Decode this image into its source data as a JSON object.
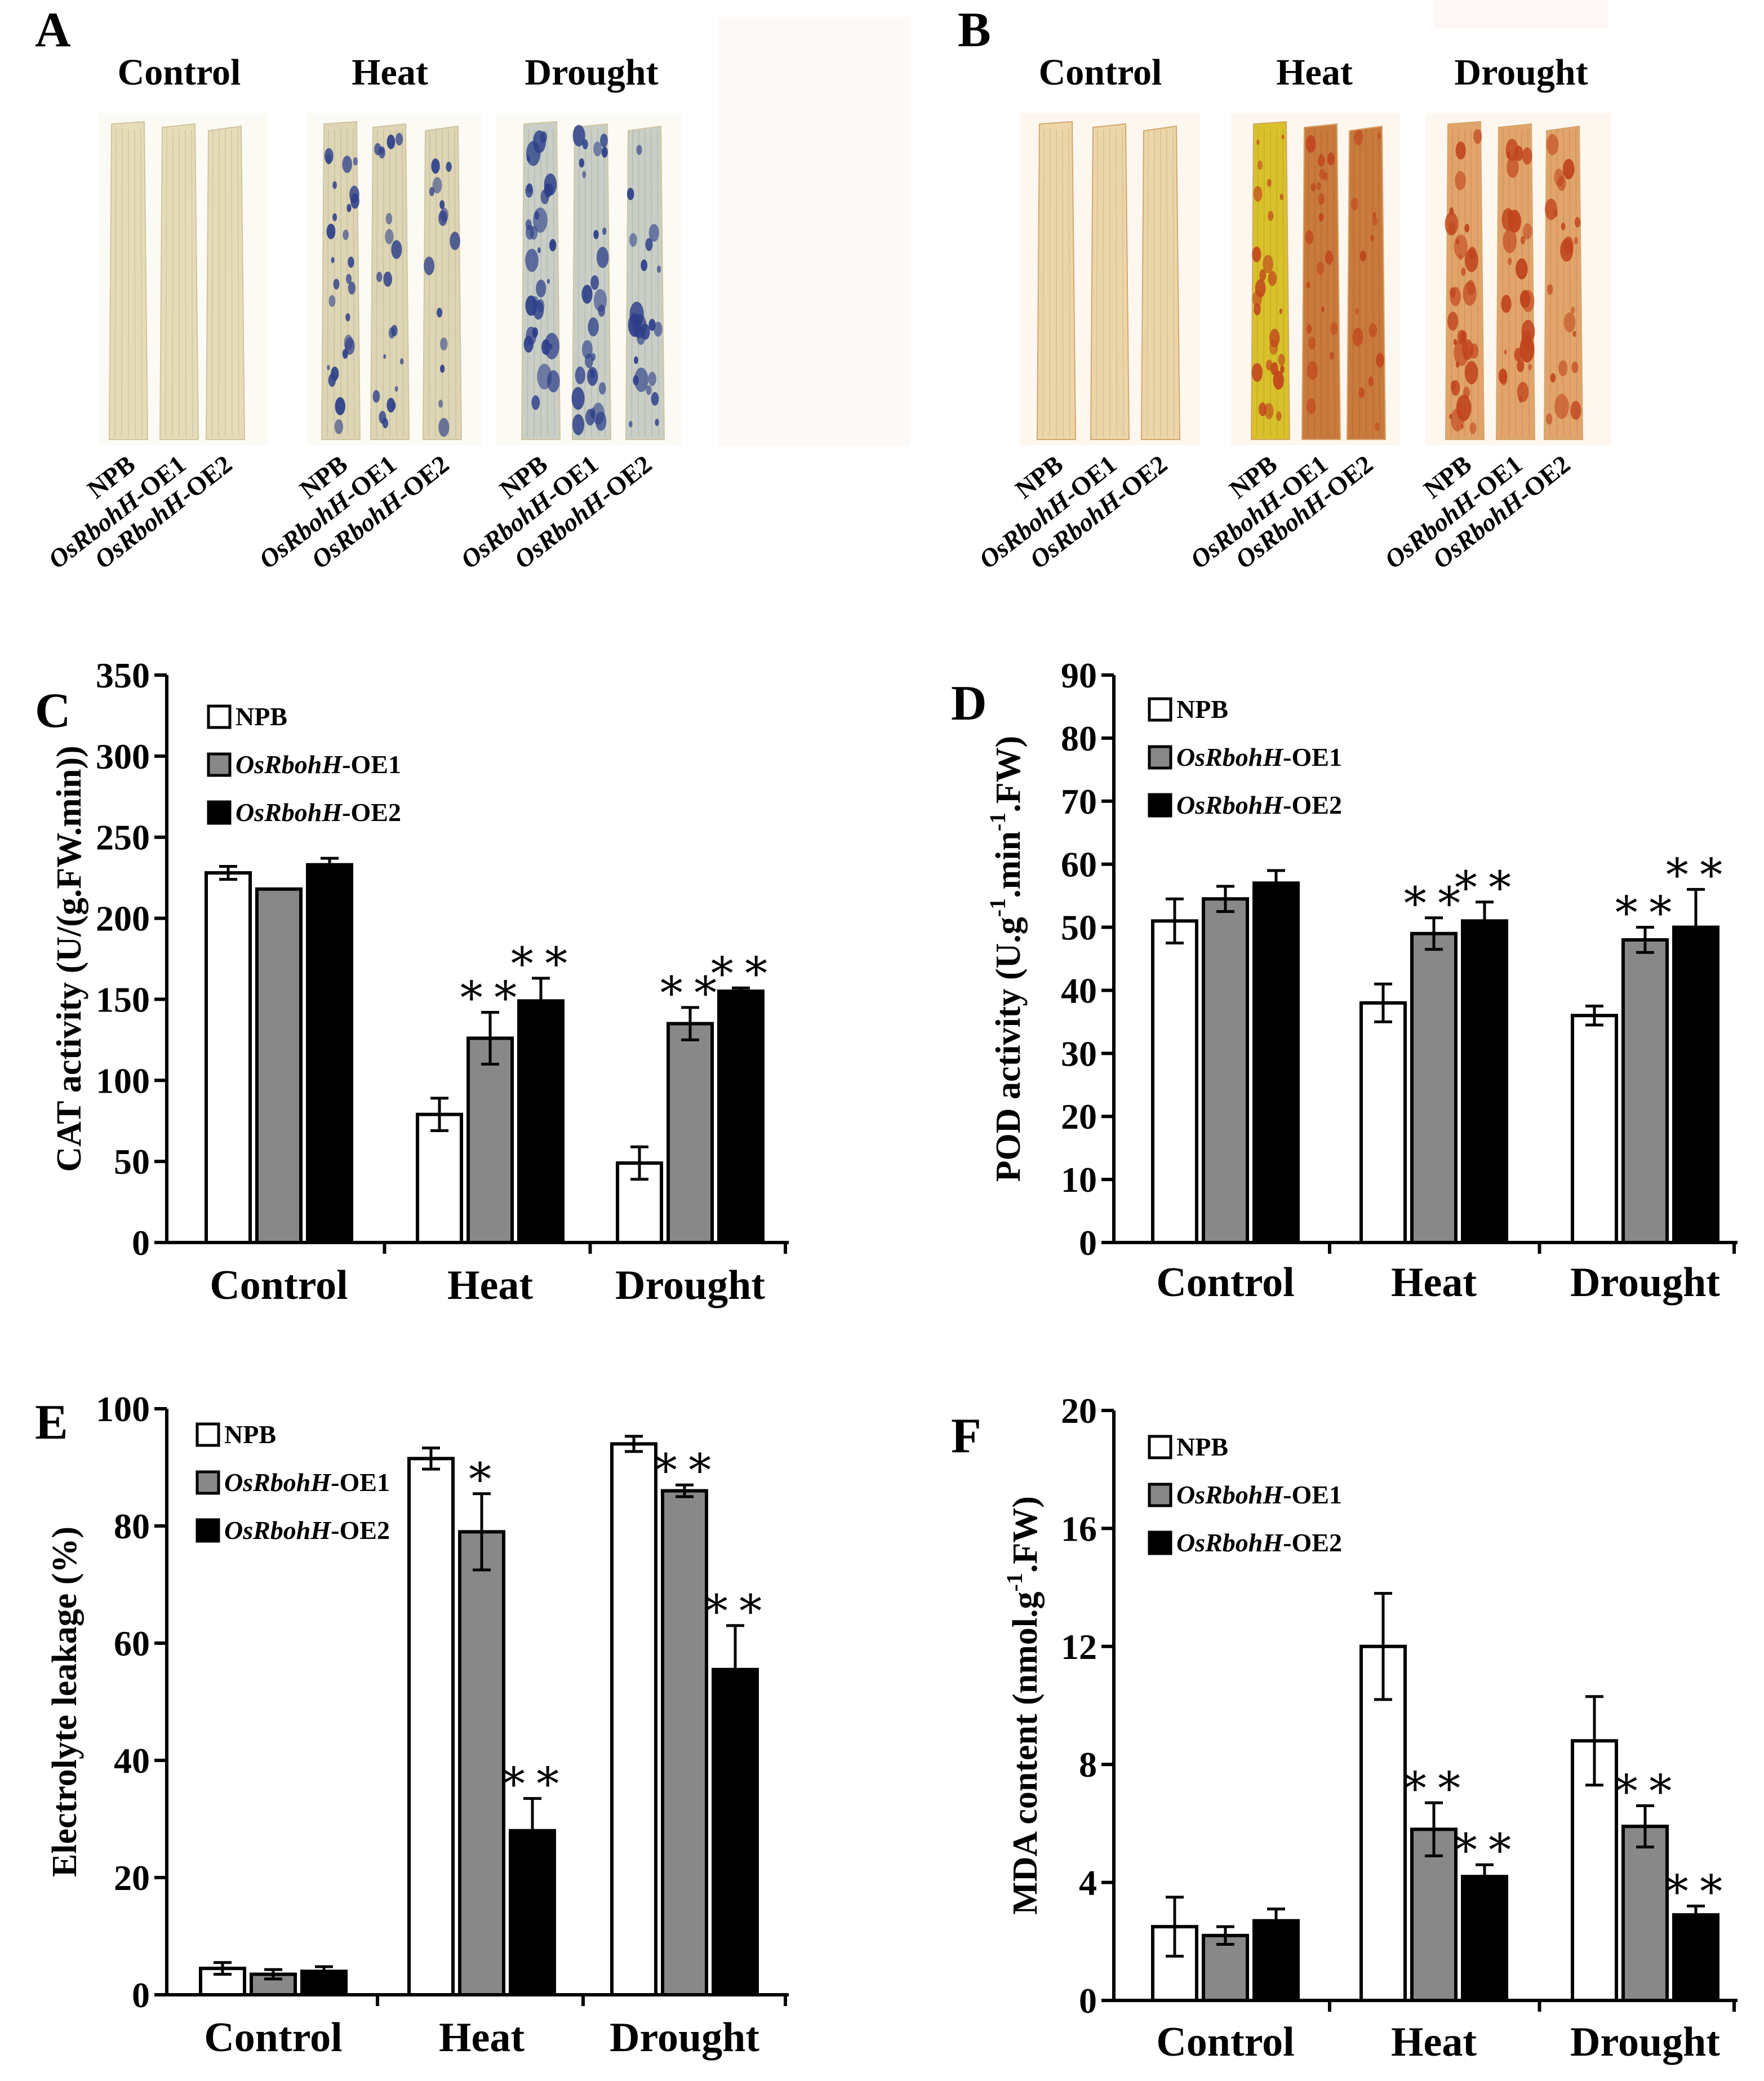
{
  "panels": {
    "A": {
      "letter": "A",
      "groups": [
        {
          "title": "Control",
          "lines": [
            "NPB",
            "OsRbohH-OE1",
            "OsRbohH-OE2"
          ]
        },
        {
          "title": "Heat",
          "lines": [
            "NPB",
            "OsRbohH-OE1",
            "OsRbohH-OE2"
          ]
        },
        {
          "title": "Drought",
          "lines": [
            "NPB",
            "OsRbohH-OE1",
            "OsRbohH-OE2"
          ]
        }
      ],
      "stain_color": "#2d3f8a"
    },
    "B": {
      "letter": "B",
      "groups": [
        {
          "title": "Control",
          "lines": [
            "NPB",
            "OsRbohH-OE1",
            "OsRbohH-OE2"
          ]
        },
        {
          "title": "Heat",
          "lines": [
            "NPB",
            "OsRbohH-OE1",
            "OsRbohH-OE2"
          ]
        },
        {
          "title": "Drought",
          "lines": [
            "NPB",
            "OsRbohH-OE1",
            "OsRbohH-OE2"
          ]
        }
      ],
      "stain_color": "#c0441c"
    }
  },
  "colors": {
    "NPB": "#ffffff",
    "OE1": "#888888",
    "OE2": "#000000",
    "axis": "#000000"
  },
  "chart_data": [
    {
      "panel": "C",
      "type": "bar",
      "title": "",
      "xlabel": "",
      "ylabel": "CAT activity (U/(g.FW.min))",
      "ylim": [
        0,
        350
      ],
      "yticks": [
        0,
        50,
        100,
        150,
        200,
        250,
        300,
        350
      ],
      "categories": [
        "Control",
        "Heat",
        "Drought"
      ],
      "legend": {
        "placement": "top-left",
        "entries": [
          {
            "italic": "",
            "plain": "NPB"
          },
          {
            "italic": "OsRbohH",
            "plain": "-OE1"
          },
          {
            "italic": "OsRbohH",
            "plain": "-OE2"
          }
        ]
      },
      "series": [
        {
          "name": "NPB",
          "values": [
            228,
            79,
            49
          ],
          "errors": [
            4,
            10,
            10
          ],
          "marks": [
            "",
            "",
            ""
          ]
        },
        {
          "name": "OsRbohH-OE1",
          "values": [
            218,
            126,
            135
          ],
          "errors": [
            0,
            16,
            10
          ],
          "marks": [
            "",
            "**",
            "**"
          ]
        },
        {
          "name": "OsRbohH-OE2",
          "values": [
            233,
            149,
            155
          ],
          "errors": [
            4,
            14,
            2
          ],
          "marks": [
            "",
            "**",
            "**"
          ]
        }
      ]
    },
    {
      "panel": "D",
      "type": "bar",
      "title": "",
      "xlabel": "",
      "ylabel": {
        "main": "POD activity (U.g",
        "sup1": "-1",
        "mid": ".min",
        "sup2": "-1",
        "end": ".FW)"
      },
      "ylim": [
        0,
        90
      ],
      "yticks": [
        0,
        10,
        20,
        30,
        40,
        50,
        60,
        70,
        80,
        90
      ],
      "categories": [
        "Control",
        "Heat",
        "Drought"
      ],
      "legend": {
        "placement": "top-left",
        "entries": [
          {
            "italic": "",
            "plain": "NPB"
          },
          {
            "italic": "OsRbohH",
            "plain": "-OE1"
          },
          {
            "italic": "OsRbohH",
            "plain": "-OE2"
          }
        ]
      },
      "series": [
        {
          "name": "NPB",
          "values": [
            51,
            38,
            36
          ],
          "errors": [
            3.5,
            3,
            1.5
          ],
          "marks": [
            "",
            "",
            ""
          ]
        },
        {
          "name": "OsRbohH-OE1",
          "values": [
            54.5,
            49,
            48
          ],
          "errors": [
            2,
            2.5,
            2
          ],
          "marks": [
            "",
            "**",
            "**"
          ]
        },
        {
          "name": "OsRbohH-OE2",
          "values": [
            57,
            51,
            50
          ],
          "errors": [
            2,
            3,
            6
          ],
          "marks": [
            "",
            "**",
            "**"
          ]
        }
      ]
    },
    {
      "panel": "E",
      "type": "bar",
      "title": "",
      "xlabel": "",
      "ylabel": "Electrolyte leakage (%)",
      "ylim": [
        0,
        100
      ],
      "yticks": [
        0,
        20,
        40,
        60,
        80,
        100
      ],
      "categories": [
        "Control",
        "Heat",
        "Drought"
      ],
      "legend": {
        "placement": "top-left",
        "entries": [
          {
            "italic": "",
            "plain": "NPB"
          },
          {
            "italic": "OsRbohH",
            "plain": "-OE1"
          },
          {
            "italic": "OsRbohH",
            "plain": "-OE2"
          }
        ]
      },
      "series": [
        {
          "name": "NPB",
          "values": [
            4.5,
            91.5,
            94
          ],
          "errors": [
            1,
            1.8,
            1.3
          ],
          "marks": [
            "",
            "",
            ""
          ]
        },
        {
          "name": "OsRbohH-OE1",
          "values": [
            3.5,
            79,
            86
          ],
          "errors": [
            0.8,
            6.5,
            1
          ],
          "marks": [
            "",
            "*",
            "**"
          ]
        },
        {
          "name": "OsRbohH-OE2",
          "values": [
            4,
            28,
            55.5
          ],
          "errors": [
            0.8,
            5.5,
            7.5
          ],
          "marks": [
            "",
            "**",
            "**"
          ]
        }
      ]
    },
    {
      "panel": "F",
      "type": "bar",
      "title": "",
      "xlabel": "",
      "ylabel": {
        "main": "MDA content (nmol.g",
        "sup1": "-1",
        "mid": ".FW)",
        "sup2": "",
        "end": ""
      },
      "ylim": [
        0,
        20
      ],
      "yticks": [
        0,
        4,
        8,
        12,
        16,
        20
      ],
      "categories": [
        "Control",
        "Heat",
        "Drought"
      ],
      "legend": {
        "placement": "top-left",
        "entries": [
          {
            "italic": "",
            "plain": "NPB"
          },
          {
            "italic": "OsRbohH",
            "plain": "-OE1"
          },
          {
            "italic": "OsRbohH",
            "plain": "-OE2"
          }
        ]
      },
      "series": [
        {
          "name": "NPB",
          "values": [
            2.5,
            12,
            8.8
          ],
          "errors": [
            1,
            1.8,
            1.5
          ],
          "marks": [
            "",
            "",
            ""
          ]
        },
        {
          "name": "OsRbohH-OE1",
          "values": [
            2.2,
            5.8,
            5.9
          ],
          "errors": [
            0.3,
            0.9,
            0.7
          ],
          "marks": [
            "",
            "**",
            "**"
          ]
        },
        {
          "name": "OsRbohH-OE2",
          "values": [
            2.7,
            4.2,
            2.9
          ],
          "errors": [
            0.4,
            0.4,
            0.3
          ],
          "marks": [
            "",
            "**",
            "**"
          ]
        }
      ]
    }
  ]
}
